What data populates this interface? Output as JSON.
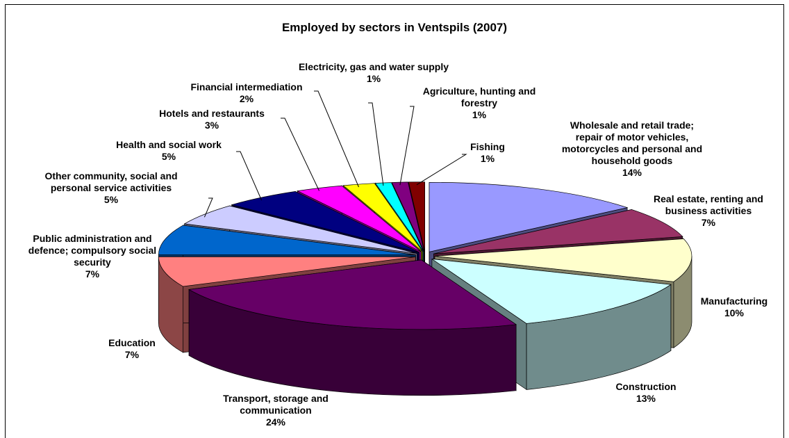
{
  "chart_data": {
    "type": "pie3d",
    "title": "Employed by sectors in Ventspils (2007)",
    "categories": [
      "Wholesale and retail trade; repair of motor vehicles, motorcycles and personal and household goods",
      "Real estate, renting and business activities",
      "Manufacturing",
      "Construction",
      "Transport, storage and communication",
      "Education",
      "Public administration and defence; compulsory social security",
      "Other community, social and personal service activities",
      "Health and social work",
      "Hotels and restaurants",
      "Financial intermediation",
      "Electricity, gas and water supply",
      "Agriculture, hunting and forestry",
      "Fishing"
    ],
    "values": [
      14,
      7,
      10,
      13,
      24,
      7,
      7,
      5,
      5,
      3,
      2,
      1,
      1,
      1
    ],
    "value_labels": [
      "14%",
      "7%",
      "10%",
      "13%",
      "24%",
      "7%",
      "7%",
      "5%",
      "5%",
      "3%",
      "2%",
      "1%",
      "1%",
      "1%"
    ],
    "colors": [
      "#9999ff",
      "#993366",
      "#ffffcc",
      "#ccffff",
      "#660066",
      "#ff8080",
      "#0066cc",
      "#ccccff",
      "#000080",
      "#ff00ff",
      "#ffff00",
      "#00ffff",
      "#800080",
      "#800000"
    ]
  }
}
